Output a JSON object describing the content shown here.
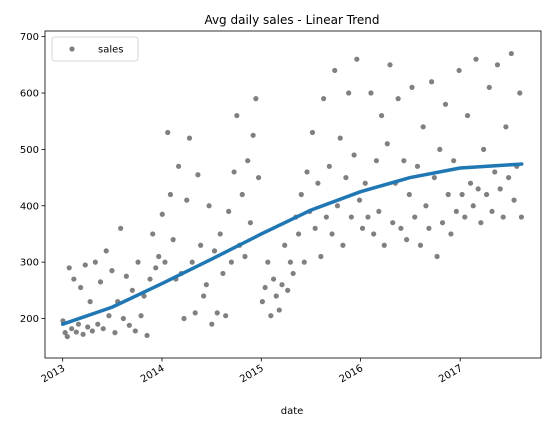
{
  "chart_data": {
    "type": "scatter",
    "title": "Avg daily sales - Linear Trend",
    "xlabel": "date",
    "ylabel": "",
    "xlim": [
      "2012-10-28",
      "2017-10-25"
    ],
    "ylim": [
      130,
      710
    ],
    "x_ticks": [
      "2013",
      "2014",
      "2015",
      "2016",
      "2017"
    ],
    "y_ticks": [
      200,
      300,
      400,
      500,
      600,
      700
    ],
    "grid": false,
    "legend": {
      "position": "top-left",
      "entries": [
        "sales"
      ]
    },
    "colors": {
      "scatter": "#808080",
      "trend": "#1f77b4"
    },
    "series": [
      {
        "name": "sales",
        "type": "scatter",
        "points": [
          [
            "2013-01-02",
            196
          ],
          [
            "2013-01-10",
            175
          ],
          [
            "2013-01-18",
            168
          ],
          [
            "2013-01-25",
            290
          ],
          [
            "2013-02-03",
            182
          ],
          [
            "2013-02-11",
            270
          ],
          [
            "2013-02-20",
            176
          ],
          [
            "2013-02-28",
            190
          ],
          [
            "2013-03-08",
            255
          ],
          [
            "2013-03-17",
            172
          ],
          [
            "2013-03-25",
            295
          ],
          [
            "2013-04-03",
            185
          ],
          [
            "2013-04-12",
            230
          ],
          [
            "2013-04-20",
            178
          ],
          [
            "2013-05-01",
            300
          ],
          [
            "2013-05-10",
            190
          ],
          [
            "2013-05-20",
            265
          ],
          [
            "2013-05-30",
            182
          ],
          [
            "2013-06-10",
            320
          ],
          [
            "2013-06-20",
            205
          ],
          [
            "2013-07-01",
            285
          ],
          [
            "2013-07-12",
            175
          ],
          [
            "2013-07-22",
            230
          ],
          [
            "2013-08-02",
            360
          ],
          [
            "2013-08-12",
            200
          ],
          [
            "2013-08-23",
            275
          ],
          [
            "2013-09-03",
            188
          ],
          [
            "2013-09-14",
            250
          ],
          [
            "2013-09-25",
            178
          ],
          [
            "2013-10-05",
            300
          ],
          [
            "2013-10-16",
            205
          ],
          [
            "2013-10-27",
            240
          ],
          [
            "2013-11-07",
            170
          ],
          [
            "2013-11-18",
            270
          ],
          [
            "2013-11-28",
            350
          ],
          [
            "2013-12-09",
            290
          ],
          [
            "2013-12-20",
            310
          ],
          [
            "2014-01-02",
            385
          ],
          [
            "2014-01-12",
            300
          ],
          [
            "2014-01-22",
            530
          ],
          [
            "2014-02-01",
            420
          ],
          [
            "2014-02-11",
            340
          ],
          [
            "2014-02-21",
            270
          ],
          [
            "2014-03-03",
            470
          ],
          [
            "2014-03-13",
            280
          ],
          [
            "2014-03-23",
            200
          ],
          [
            "2014-04-02",
            410
          ],
          [
            "2014-04-12",
            520
          ],
          [
            "2014-04-22",
            300
          ],
          [
            "2014-05-03",
            210
          ],
          [
            "2014-05-13",
            455
          ],
          [
            "2014-05-23",
            330
          ],
          [
            "2014-06-03",
            240
          ],
          [
            "2014-06-13",
            260
          ],
          [
            "2014-06-23",
            400
          ],
          [
            "2014-07-03",
            190
          ],
          [
            "2014-07-13",
            320
          ],
          [
            "2014-07-23",
            210
          ],
          [
            "2014-08-03",
            350
          ],
          [
            "2014-08-13",
            280
          ],
          [
            "2014-08-23",
            205
          ],
          [
            "2014-09-03",
            390
          ],
          [
            "2014-09-13",
            300
          ],
          [
            "2014-09-23",
            460
          ],
          [
            "2014-10-03",
            560
          ],
          [
            "2014-10-13",
            330
          ],
          [
            "2014-10-23",
            420
          ],
          [
            "2014-11-02",
            310
          ],
          [
            "2014-11-12",
            480
          ],
          [
            "2014-11-22",
            370
          ],
          [
            "2014-12-02",
            525
          ],
          [
            "2014-12-12",
            590
          ],
          [
            "2014-12-22",
            450
          ],
          [
            "2015-01-05",
            230
          ],
          [
            "2015-01-15",
            255
          ],
          [
            "2015-01-25",
            300
          ],
          [
            "2015-02-05",
            205
          ],
          [
            "2015-02-15",
            270
          ],
          [
            "2015-02-25",
            240
          ],
          [
            "2015-03-08",
            215
          ],
          [
            "2015-03-18",
            260
          ],
          [
            "2015-03-28",
            330
          ],
          [
            "2015-04-08",
            250
          ],
          [
            "2015-04-18",
            300
          ],
          [
            "2015-04-28",
            280
          ],
          [
            "2015-05-08",
            380
          ],
          [
            "2015-05-18",
            350
          ],
          [
            "2015-05-28",
            420
          ],
          [
            "2015-06-08",
            300
          ],
          [
            "2015-06-18",
            460
          ],
          [
            "2015-06-28",
            390
          ],
          [
            "2015-07-08",
            530
          ],
          [
            "2015-07-18",
            360
          ],
          [
            "2015-07-28",
            440
          ],
          [
            "2015-08-08",
            310
          ],
          [
            "2015-08-18",
            590
          ],
          [
            "2015-08-28",
            380
          ],
          [
            "2015-09-08",
            470
          ],
          [
            "2015-09-18",
            350
          ],
          [
            "2015-09-28",
            640
          ],
          [
            "2015-10-08",
            400
          ],
          [
            "2015-10-18",
            520
          ],
          [
            "2015-10-28",
            330
          ],
          [
            "2015-11-08",
            450
          ],
          [
            "2015-11-18",
            600
          ],
          [
            "2015-11-28",
            380
          ],
          [
            "2015-12-08",
            490
          ],
          [
            "2015-12-18",
            660
          ],
          [
            "2015-12-28",
            410
          ],
          [
            "2016-01-08",
            360
          ],
          [
            "2016-01-18",
            440
          ],
          [
            "2016-01-28",
            380
          ],
          [
            "2016-02-08",
            600
          ],
          [
            "2016-02-18",
            350
          ],
          [
            "2016-02-28",
            480
          ],
          [
            "2016-03-08",
            390
          ],
          [
            "2016-03-18",
            560
          ],
          [
            "2016-03-28",
            330
          ],
          [
            "2016-04-08",
            510
          ],
          [
            "2016-04-18",
            650
          ],
          [
            "2016-04-28",
            370
          ],
          [
            "2016-05-08",
            440
          ],
          [
            "2016-05-18",
            590
          ],
          [
            "2016-05-28",
            360
          ],
          [
            "2016-06-08",
            480
          ],
          [
            "2016-06-18",
            340
          ],
          [
            "2016-06-28",
            420
          ],
          [
            "2016-07-08",
            610
          ],
          [
            "2016-07-18",
            380
          ],
          [
            "2016-07-28",
            470
          ],
          [
            "2016-08-08",
            330
          ],
          [
            "2016-08-18",
            540
          ],
          [
            "2016-08-28",
            400
          ],
          [
            "2016-09-08",
            360
          ],
          [
            "2016-09-18",
            620
          ],
          [
            "2016-09-28",
            450
          ],
          [
            "2016-10-08",
            310
          ],
          [
            "2016-10-18",
            500
          ],
          [
            "2016-10-28",
            370
          ],
          [
            "2016-11-08",
            580
          ],
          [
            "2016-11-18",
            420
          ],
          [
            "2016-11-28",
            350
          ],
          [
            "2016-12-08",
            480
          ],
          [
            "2016-12-18",
            390
          ],
          [
            "2016-12-28",
            640
          ],
          [
            "2017-01-08",
            420
          ],
          [
            "2017-01-18",
            380
          ],
          [
            "2017-01-28",
            560
          ],
          [
            "2017-02-08",
            440
          ],
          [
            "2017-02-18",
            400
          ],
          [
            "2017-02-28",
            660
          ],
          [
            "2017-03-08",
            430
          ],
          [
            "2017-03-18",
            370
          ],
          [
            "2017-03-28",
            500
          ],
          [
            "2017-04-08",
            420
          ],
          [
            "2017-04-18",
            610
          ],
          [
            "2017-04-28",
            390
          ],
          [
            "2017-05-08",
            460
          ],
          [
            "2017-05-18",
            650
          ],
          [
            "2017-05-28",
            430
          ],
          [
            "2017-06-08",
            380
          ],
          [
            "2017-06-18",
            540
          ],
          [
            "2017-06-28",
            450
          ],
          [
            "2017-07-08",
            670
          ],
          [
            "2017-07-18",
            410
          ],
          [
            "2017-07-28",
            470
          ],
          [
            "2017-08-08",
            600
          ],
          [
            "2017-08-14",
            380
          ]
        ]
      },
      {
        "name": "trend",
        "type": "line",
        "points": [
          [
            "2013-01-01",
            190
          ],
          [
            "2013-07-01",
            220
          ],
          [
            "2014-01-01",
            262
          ],
          [
            "2014-07-01",
            305
          ],
          [
            "2015-01-01",
            350
          ],
          [
            "2015-07-01",
            392
          ],
          [
            "2016-01-01",
            425
          ],
          [
            "2016-07-01",
            450
          ],
          [
            "2017-01-01",
            467
          ],
          [
            "2017-08-15",
            474
          ]
        ]
      }
    ]
  }
}
